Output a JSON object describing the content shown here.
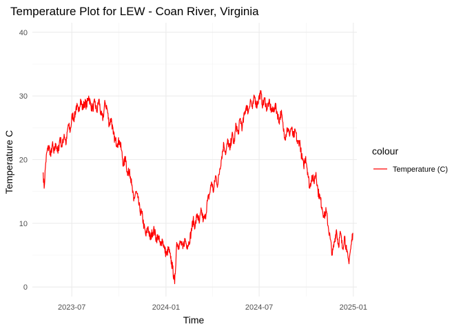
{
  "chart_data": {
    "type": "line",
    "title": "Temperature Plot for LEW - Coan River, Virginia",
    "xlabel": "Time",
    "ylabel": "Temperature C",
    "ylim": [
      -1.5,
      41.5
    ],
    "xlim": [
      "2023-04-15",
      "2025-01-08"
    ],
    "grid": true,
    "legend_position": "right",
    "legend_title": "colour",
    "y_ticks": [
      0,
      10,
      20,
      30,
      40
    ],
    "x_ticks": [
      {
        "date": "2023-07-01",
        "label": "2023-07"
      },
      {
        "date": "2024-01-01",
        "label": "2024-01"
      },
      {
        "date": "2024-07-01",
        "label": "2024-07"
      },
      {
        "date": "2025-01-01",
        "label": "2025-01"
      }
    ],
    "x_minor_ticks": [
      "2023-04-01",
      "2023-10-01",
      "2024-04-01",
      "2024-10-01"
    ],
    "series": [
      {
        "name": "Temperature (C)",
        "color": "#ff0000",
        "points": [
          [
            "2023-05-06",
            18.0
          ],
          [
            "2023-05-08",
            15.5
          ],
          [
            "2023-05-11",
            19.5
          ],
          [
            "2023-05-14",
            21.5
          ],
          [
            "2023-05-18",
            22.0
          ],
          [
            "2023-05-21",
            20.5
          ],
          [
            "2023-05-24",
            22.5
          ],
          [
            "2023-05-27",
            21.0
          ],
          [
            "2023-05-31",
            22.5
          ],
          [
            "2023-06-04",
            21.0
          ],
          [
            "2023-06-08",
            23.5
          ],
          [
            "2023-06-12",
            22.0
          ],
          [
            "2023-06-16",
            24.0
          ],
          [
            "2023-06-20",
            22.5
          ],
          [
            "2023-06-24",
            25.5
          ],
          [
            "2023-06-28",
            24.5
          ],
          [
            "2023-07-02",
            27.0
          ],
          [
            "2023-07-06",
            26.5
          ],
          [
            "2023-07-10",
            28.5
          ],
          [
            "2023-07-14",
            27.5
          ],
          [
            "2023-07-18",
            29.5
          ],
          [
            "2023-07-22",
            28.0
          ],
          [
            "2023-07-26",
            29.0
          ],
          [
            "2023-07-30",
            28.5
          ],
          [
            "2023-08-03",
            30.0
          ],
          [
            "2023-08-07",
            28.5
          ],
          [
            "2023-08-11",
            28.0
          ],
          [
            "2023-08-15",
            29.0
          ],
          [
            "2023-08-19",
            27.5
          ],
          [
            "2023-08-23",
            29.5
          ],
          [
            "2023-08-27",
            27.0
          ],
          [
            "2023-08-31",
            26.5
          ],
          [
            "2023-09-04",
            29.0
          ],
          [
            "2023-09-08",
            28.0
          ],
          [
            "2023-09-12",
            25.5
          ],
          [
            "2023-09-16",
            26.5
          ],
          [
            "2023-09-20",
            24.0
          ],
          [
            "2023-09-24",
            23.0
          ],
          [
            "2023-09-28",
            22.5
          ],
          [
            "2023-10-02",
            23.0
          ],
          [
            "2023-10-06",
            21.5
          ],
          [
            "2023-10-10",
            19.0
          ],
          [
            "2023-10-14",
            20.5
          ],
          [
            "2023-10-18",
            17.5
          ],
          [
            "2023-10-22",
            18.5
          ],
          [
            "2023-10-26",
            16.0
          ],
          [
            "2023-10-30",
            13.5
          ],
          [
            "2023-11-03",
            15.0
          ],
          [
            "2023-11-07",
            14.0
          ],
          [
            "2023-11-11",
            12.0
          ],
          [
            "2023-11-15",
            11.5
          ],
          [
            "2023-11-19",
            9.5
          ],
          [
            "2023-11-23",
            8.0
          ],
          [
            "2023-11-27",
            9.5
          ],
          [
            "2023-12-01",
            7.5
          ],
          [
            "2023-12-05",
            8.5
          ],
          [
            "2023-12-09",
            9.0
          ],
          [
            "2023-12-13",
            7.5
          ],
          [
            "2023-12-17",
            8.0
          ],
          [
            "2023-12-21",
            6.5
          ],
          [
            "2023-12-25",
            7.5
          ],
          [
            "2023-12-29",
            6.0
          ],
          [
            "2024-01-02",
            5.0
          ],
          [
            "2024-01-06",
            6.0
          ],
          [
            "2024-01-10",
            4.5
          ],
          [
            "2024-01-14",
            3.0
          ],
          [
            "2024-01-18",
            0.5
          ],
          [
            "2024-01-22",
            7.0
          ],
          [
            "2024-01-26",
            6.5
          ],
          [
            "2024-01-30",
            7.0
          ],
          [
            "2024-02-03",
            6.0
          ],
          [
            "2024-02-07",
            7.5
          ],
          [
            "2024-02-11",
            6.5
          ],
          [
            "2024-02-15",
            7.0
          ],
          [
            "2024-02-19",
            8.5
          ],
          [
            "2024-02-23",
            10.5
          ],
          [
            "2024-02-27",
            9.5
          ],
          [
            "2024-03-02",
            11.5
          ],
          [
            "2024-03-06",
            10.0
          ],
          [
            "2024-03-10",
            12.0
          ],
          [
            "2024-03-14",
            10.5
          ],
          [
            "2024-03-18",
            11.0
          ],
          [
            "2024-03-22",
            13.5
          ],
          [
            "2024-03-26",
            14.5
          ],
          [
            "2024-03-30",
            16.5
          ],
          [
            "2024-04-03",
            15.0
          ],
          [
            "2024-04-07",
            17.5
          ],
          [
            "2024-04-11",
            16.0
          ],
          [
            "2024-04-15",
            18.5
          ],
          [
            "2024-04-19",
            20.5
          ],
          [
            "2024-04-23",
            22.5
          ],
          [
            "2024-04-27",
            21.0
          ],
          [
            "2024-05-01",
            23.0
          ],
          [
            "2024-05-05",
            21.5
          ],
          [
            "2024-05-09",
            24.0
          ],
          [
            "2024-05-13",
            22.5
          ],
          [
            "2024-05-17",
            25.5
          ],
          [
            "2024-05-21",
            24.0
          ],
          [
            "2024-05-25",
            26.5
          ],
          [
            "2024-05-29",
            25.0
          ],
          [
            "2024-06-02",
            27.0
          ],
          [
            "2024-06-06",
            28.5
          ],
          [
            "2024-06-10",
            27.5
          ],
          [
            "2024-06-14",
            29.5
          ],
          [
            "2024-06-18",
            28.0
          ],
          [
            "2024-06-22",
            30.0
          ],
          [
            "2024-06-26",
            28.5
          ],
          [
            "2024-06-30",
            29.5
          ],
          [
            "2024-07-04",
            30.5
          ],
          [
            "2024-07-08",
            28.5
          ],
          [
            "2024-07-12",
            29.5
          ],
          [
            "2024-07-16",
            28.0
          ],
          [
            "2024-07-20",
            29.0
          ],
          [
            "2024-07-24",
            28.0
          ],
          [
            "2024-07-28",
            27.5
          ],
          [
            "2024-08-01",
            28.5
          ],
          [
            "2024-08-05",
            27.5
          ],
          [
            "2024-08-09",
            26.0
          ],
          [
            "2024-08-13",
            27.5
          ],
          [
            "2024-08-17",
            25.0
          ],
          [
            "2024-08-21",
            23.5
          ],
          [
            "2024-08-25",
            25.0
          ],
          [
            "2024-08-29",
            24.0
          ],
          [
            "2024-09-02",
            25.0
          ],
          [
            "2024-09-06",
            23.5
          ],
          [
            "2024-09-10",
            24.5
          ],
          [
            "2024-09-14",
            22.5
          ],
          [
            "2024-09-18",
            23.0
          ],
          [
            "2024-09-22",
            20.5
          ],
          [
            "2024-09-26",
            19.0
          ],
          [
            "2024-09-30",
            20.5
          ],
          [
            "2024-10-04",
            18.0
          ],
          [
            "2024-10-08",
            15.5
          ],
          [
            "2024-10-12",
            17.5
          ],
          [
            "2024-10-16",
            16.5
          ],
          [
            "2024-10-20",
            18.0
          ],
          [
            "2024-10-24",
            15.0
          ],
          [
            "2024-10-28",
            14.0
          ],
          [
            "2024-11-01",
            12.5
          ],
          [
            "2024-11-05",
            11.0
          ],
          [
            "2024-11-09",
            12.0
          ],
          [
            "2024-11-13",
            9.5
          ],
          [
            "2024-11-17",
            7.5
          ],
          [
            "2024-11-21",
            5.0
          ],
          [
            "2024-11-25",
            7.0
          ],
          [
            "2024-11-29",
            9.0
          ],
          [
            "2024-12-03",
            6.5
          ],
          [
            "2024-12-07",
            8.5
          ],
          [
            "2024-12-11",
            6.0
          ],
          [
            "2024-12-15",
            8.0
          ],
          [
            "2024-12-19",
            5.5
          ],
          [
            "2024-12-23",
            4.0
          ],
          [
            "2024-12-27",
            6.0
          ],
          [
            "2024-12-31",
            8.5
          ]
        ]
      }
    ]
  }
}
